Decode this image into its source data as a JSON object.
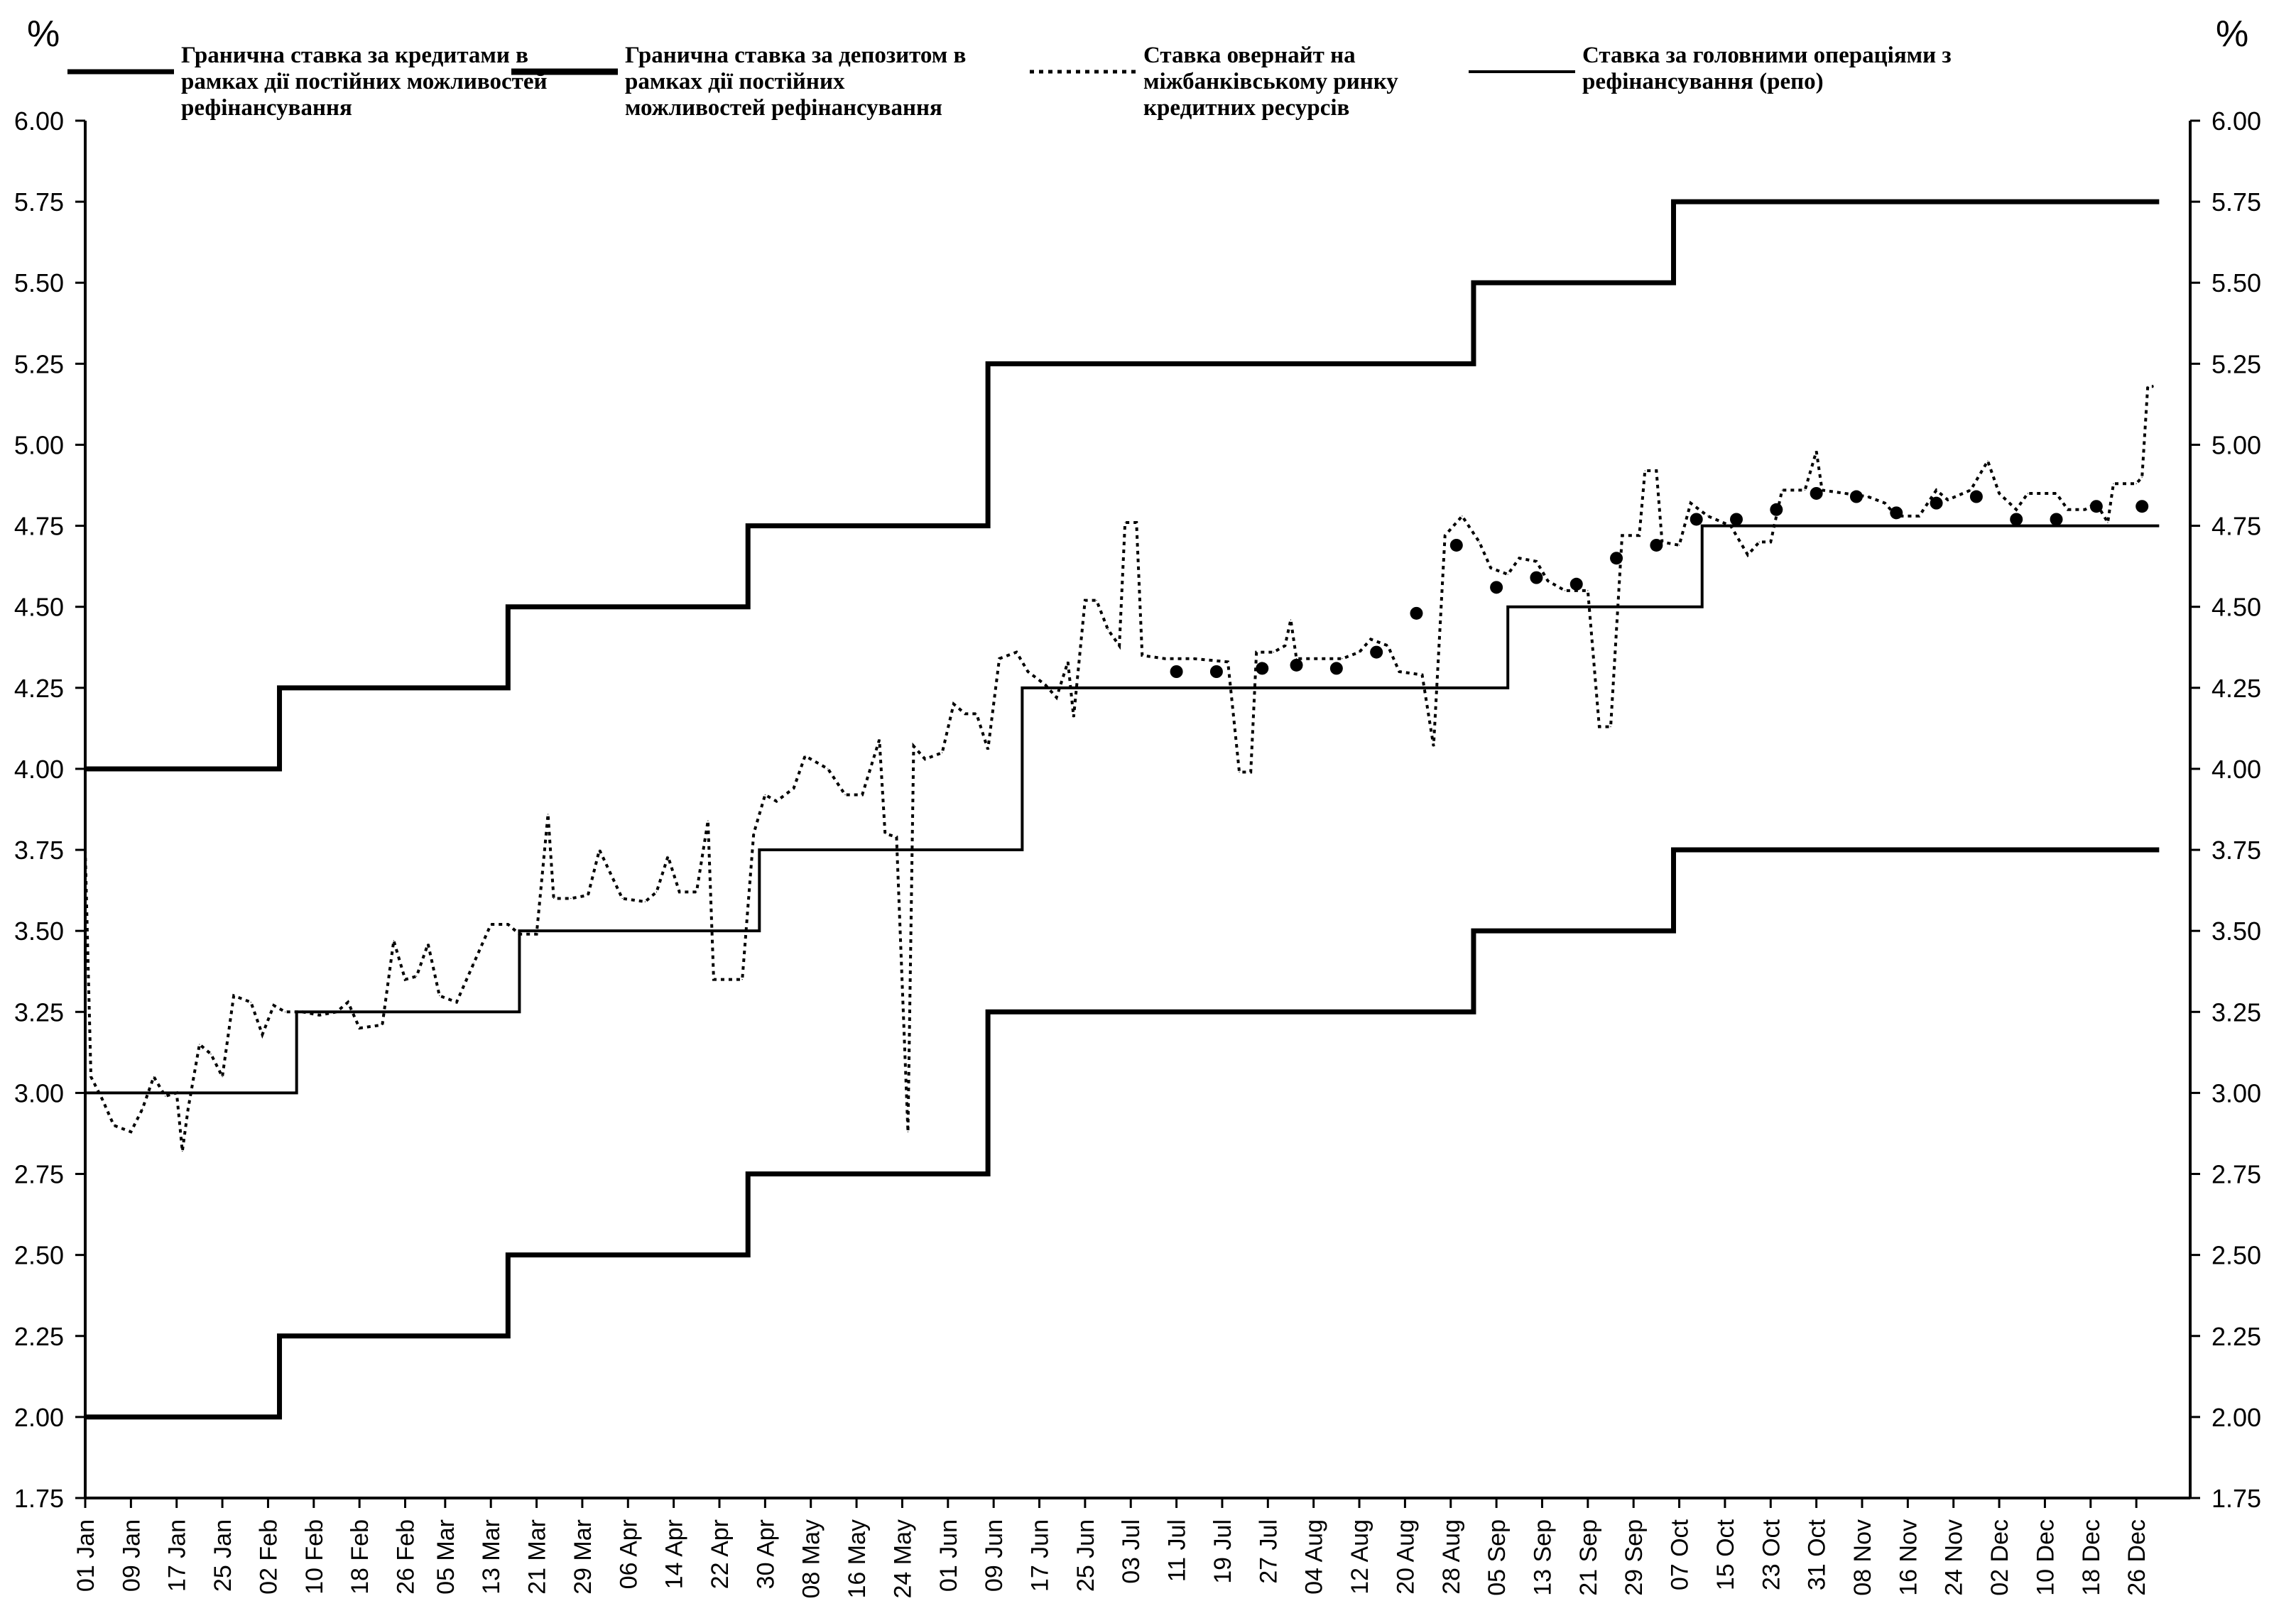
{
  "chart_data": {
    "type": "line",
    "unit_left": "%",
    "unit_right": "%",
    "ylim": [
      1.75,
      6.0
    ],
    "yticks": [
      "1.75",
      "2.00",
      "2.25",
      "2.50",
      "2.75",
      "3.00",
      "3.25",
      "3.50",
      "3.75",
      "4.00",
      "4.25",
      "4.50",
      "4.75",
      "5.00",
      "5.25",
      "5.50",
      "5.75",
      "6.00"
    ],
    "x_ticks": [
      "01 Jan",
      "09 Jan",
      "17 Jan",
      "25 Jan",
      "02 Feb",
      "10 Feb",
      "18 Feb",
      "26 Feb",
      "05 Mar",
      "13 Mar",
      "21 Mar",
      "29 Mar",
      "06 Apr",
      "14 Apr",
      "22 Apr",
      "30 Apr",
      "08 May",
      "16 May",
      "24 May",
      "01 Jun",
      "09 Jun",
      "17 Jun",
      "25 Jun",
      "03 Jul",
      "11 Jul",
      "19 Jul",
      "27 Jul",
      "04 Aug",
      "12 Aug",
      "20 Aug",
      "28 Aug",
      "05 Sep",
      "13 Sep",
      "21 Sep",
      "29 Sep",
      "07 Oct",
      "15 Oct",
      "23 Oct",
      "31 Oct",
      "08 Nov",
      "16 Nov",
      "24 Nov",
      "02 Dec",
      "10 Dec",
      "18 Dec",
      "26 Dec"
    ],
    "x_end_day": 363,
    "legend": [
      {
        "label": "Гранична ставка за кредитами в рамках дії постійних можливостей рефінансування",
        "style": "solid-thick"
      },
      {
        "label": "Гранична ставка за депозитом в рамках дії постійних можливостей рефінансування",
        "style": "solid-thick"
      },
      {
        "label": "Ставка овернайт на міжбанківському ринку кредитних ресурсів",
        "style": "dotted"
      },
      {
        "label": "Ставка за головними операціями з рефінансування (репо)",
        "style": "solid"
      }
    ],
    "series": [
      {
        "name": "Гранична ставка за кредитами в рамках дії постійних можливостей рефінансування",
        "style": "step-thick",
        "steps": [
          {
            "from": "01 Jan",
            "value": 4.0
          },
          {
            "from": "04 Feb",
            "value": 4.25
          },
          {
            "from": "16 Mar",
            "value": 4.5
          },
          {
            "from": "27 Apr",
            "value": 4.75
          },
          {
            "from": "08 Jun",
            "value": 5.25
          },
          {
            "from": "01 Sep",
            "value": 5.5
          },
          {
            "from": "06 Oct",
            "value": 5.75
          }
        ]
      },
      {
        "name": "Гранична ставка за депозитом в рамках дії постійних можливостей рефінансування",
        "style": "step-thick",
        "steps": [
          {
            "from": "01 Jan",
            "value": 2.0
          },
          {
            "from": "04 Feb",
            "value": 2.25
          },
          {
            "from": "16 Mar",
            "value": 2.5
          },
          {
            "from": "27 Apr",
            "value": 2.75
          },
          {
            "from": "08 Jun",
            "value": 3.25
          },
          {
            "from": "01 Sep",
            "value": 3.5
          },
          {
            "from": "06 Oct",
            "value": 3.75
          }
        ]
      },
      {
        "name": "Ставка за головними операціями з рефінансування (репо)",
        "style": "step",
        "steps": [
          {
            "from": "01 Jan",
            "value": 3.0
          },
          {
            "from": "07 Feb",
            "value": 3.25
          },
          {
            "from": "18 Mar",
            "value": 3.5
          },
          {
            "from": "29 Apr",
            "value": 3.75
          },
          {
            "from": "14 Jun",
            "value": 4.25
          },
          {
            "from": "07 Sep",
            "value": 4.5
          },
          {
            "from": "11 Oct",
            "value": 4.75
          }
        ]
      },
      {
        "name": "Ставка овернайт на міжбанківському ринку кредитних ресурсів",
        "style": "dotted",
        "points": [
          {
            "x": "01 Jan",
            "y": 3.75
          },
          {
            "x": "02 Jan",
            "y": 3.05
          },
          {
            "x": "04 Jan",
            "y": 2.98
          },
          {
            "x": "06 Jan",
            "y": 2.9
          },
          {
            "x": "09 Jan",
            "y": 2.88
          },
          {
            "x": "11 Jan",
            "y": 2.95
          },
          {
            "x": "13 Jan",
            "y": 3.05
          },
          {
            "x": "15 Jan",
            "y": 2.99
          },
          {
            "x": "17 Jan",
            "y": 3.0
          },
          {
            "x": "18 Jan",
            "y": 2.82
          },
          {
            "x": "19 Jan",
            "y": 2.95
          },
          {
            "x": "21 Jan",
            "y": 3.15
          },
          {
            "x": "23 Jan",
            "y": 3.12
          },
          {
            "x": "25 Jan",
            "y": 3.05
          },
          {
            "x": "27 Jan",
            "y": 3.3
          },
          {
            "x": "30 Jan",
            "y": 3.28
          },
          {
            "x": "01 Feb",
            "y": 3.18
          },
          {
            "x": "03 Feb",
            "y": 3.27
          },
          {
            "x": "05 Feb",
            "y": 3.25
          },
          {
            "x": "08 Feb",
            "y": 3.25
          },
          {
            "x": "11 Feb",
            "y": 3.24
          },
          {
            "x": "14 Feb",
            "y": 3.25
          },
          {
            "x": "16 Feb",
            "y": 3.28
          },
          {
            "x": "18 Feb",
            "y": 3.2
          },
          {
            "x": "22 Feb",
            "y": 3.21
          },
          {
            "x": "24 Feb",
            "y": 3.47
          },
          {
            "x": "26 Feb",
            "y": 3.35
          },
          {
            "x": "28 Feb",
            "y": 3.36
          },
          {
            "x": "02 Mar",
            "y": 3.46
          },
          {
            "x": "04 Mar",
            "y": 3.3
          },
          {
            "x": "07 Mar",
            "y": 3.28
          },
          {
            "x": "10 Mar",
            "y": 3.4
          },
          {
            "x": "13 Mar",
            "y": 3.52
          },
          {
            "x": "16 Mar",
            "y": 3.52
          },
          {
            "x": "18 Mar",
            "y": 3.49
          },
          {
            "x": "21 Mar",
            "y": 3.49
          },
          {
            "x": "23 Mar",
            "y": 3.86
          },
          {
            "x": "24 Mar",
            "y": 3.6
          },
          {
            "x": "27 Mar",
            "y": 3.6
          },
          {
            "x": "30 Mar",
            "y": 3.61
          },
          {
            "x": "01 Apr",
            "y": 3.75
          },
          {
            "x": "05 Apr",
            "y": 3.6
          },
          {
            "x": "09 Apr",
            "y": 3.59
          },
          {
            "x": "11 Apr",
            "y": 3.62
          },
          {
            "x": "13 Apr",
            "y": 3.73
          },
          {
            "x": "15 Apr",
            "y": 3.62
          },
          {
            "x": "18 Apr",
            "y": 3.62
          },
          {
            "x": "20 Apr",
            "y": 3.84
          },
          {
            "x": "21 Apr",
            "y": 3.35
          },
          {
            "x": "26 Apr",
            "y": 3.35
          },
          {
            "x": "28 Apr",
            "y": 3.8
          },
          {
            "x": "30 Apr",
            "y": 3.92
          },
          {
            "x": "02 May",
            "y": 3.9
          },
          {
            "x": "05 May",
            "y": 3.94
          },
          {
            "x": "07 May",
            "y": 4.04
          },
          {
            "x": "11 May",
            "y": 4.0
          },
          {
            "x": "14 May",
            "y": 3.92
          },
          {
            "x": "17 May",
            "y": 3.92
          },
          {
            "x": "20 May",
            "y": 4.09
          },
          {
            "x": "21 May",
            "y": 3.8
          },
          {
            "x": "23 May",
            "y": 3.79
          },
          {
            "x": "25 May",
            "y": 2.88
          },
          {
            "x": "26 May",
            "y": 4.07
          },
          {
            "x": "28 May",
            "y": 4.03
          },
          {
            "x": "31 May",
            "y": 4.05
          },
          {
            "x": "02 Jun",
            "y": 4.2
          },
          {
            "x": "04 Jun",
            "y": 4.17
          },
          {
            "x": "06 Jun",
            "y": 4.17
          },
          {
            "x": "08 Jun",
            "y": 4.06
          },
          {
            "x": "10 Jun",
            "y": 4.34
          },
          {
            "x": "13 Jun",
            "y": 4.36
          },
          {
            "x": "15 Jun",
            "y": 4.3
          },
          {
            "x": "18 Jun",
            "y": 4.26
          },
          {
            "x": "20 Jun",
            "y": 4.22
          },
          {
            "x": "22 Jun",
            "y": 4.33
          },
          {
            "x": "23 Jun",
            "y": 4.16
          },
          {
            "x": "25 Jun",
            "y": 4.52
          },
          {
            "x": "27 Jun",
            "y": 4.52
          },
          {
            "x": "29 Jun",
            "y": 4.43
          },
          {
            "x": "01 Jul",
            "y": 4.38
          },
          {
            "x": "02 Jul",
            "y": 4.76
          },
          {
            "x": "04 Jul",
            "y": 4.76
          },
          {
            "x": "05 Jul",
            "y": 4.35
          },
          {
            "x": "09 Jul",
            "y": 4.34
          },
          {
            "x": "14 Jul",
            "y": 4.34
          },
          {
            "x": "20 Jul",
            "y": 4.33
          },
          {
            "x": "22 Jul",
            "y": 3.99
          },
          {
            "x": "24 Jul",
            "y": 3.99
          },
          {
            "x": "25 Jul",
            "y": 4.36
          },
          {
            "x": "28 Jul",
            "y": 4.36
          },
          {
            "x": "30 Jul",
            "y": 4.38
          },
          {
            "x": "31 Jul",
            "y": 4.46
          },
          {
            "x": "01 Aug",
            "y": 4.34
          },
          {
            "x": "09 Aug",
            "y": 4.34
          },
          {
            "x": "12 Aug",
            "y": 4.36
          },
          {
            "x": "14 Aug",
            "y": 4.4
          },
          {
            "x": "17 Aug",
            "y": 4.38
          },
          {
            "x": "19 Aug",
            "y": 4.3
          },
          {
            "x": "23 Aug",
            "y": 4.29
          },
          {
            "x": "25 Aug",
            "y": 4.07
          },
          {
            "x": "27 Aug",
            "y": 4.72
          },
          {
            "x": "30 Aug",
            "y": 4.78
          },
          {
            "x": "02 Sep",
            "y": 4.7
          },
          {
            "x": "04 Sep",
            "y": 4.62
          },
          {
            "x": "07 Sep",
            "y": 4.6
          },
          {
            "x": "09 Sep",
            "y": 4.65
          },
          {
            "x": "12 Sep",
            "y": 4.64
          },
          {
            "x": "14 Sep",
            "y": 4.58
          },
          {
            "x": "17 Sep",
            "y": 4.55
          },
          {
            "x": "21 Sep",
            "y": 4.55
          },
          {
            "x": "23 Sep",
            "y": 4.13
          },
          {
            "x": "25 Sep",
            "y": 4.13
          },
          {
            "x": "27 Sep",
            "y": 4.72
          },
          {
            "x": "30 Sep",
            "y": 4.72
          },
          {
            "x": "01 Oct",
            "y": 4.92
          },
          {
            "x": "03 Oct",
            "y": 4.92
          },
          {
            "x": "04 Oct",
            "y": 4.7
          },
          {
            "x": "07 Oct",
            "y": 4.69
          },
          {
            "x": "09 Oct",
            "y": 4.82
          },
          {
            "x": "12 Oct",
            "y": 4.78
          },
          {
            "x": "16 Oct",
            "y": 4.75
          },
          {
            "x": "19 Oct",
            "y": 4.66
          },
          {
            "x": "21 Oct",
            "y": 4.7
          },
          {
            "x": "23 Oct",
            "y": 4.7
          },
          {
            "x": "25 Oct",
            "y": 4.86
          },
          {
            "x": "29 Oct",
            "y": 4.86
          },
          {
            "x": "31 Oct",
            "y": 4.98
          },
          {
            "x": "01 Nov",
            "y": 4.86
          },
          {
            "x": "05 Nov",
            "y": 4.85
          },
          {
            "x": "09 Nov",
            "y": 4.84
          },
          {
            "x": "12 Nov",
            "y": 4.82
          },
          {
            "x": "14 Nov",
            "y": 4.78
          },
          {
            "x": "18 Nov",
            "y": 4.78
          },
          {
            "x": "21 Nov",
            "y": 4.86
          },
          {
            "x": "23 Nov",
            "y": 4.83
          },
          {
            "x": "27 Nov",
            "y": 4.86
          },
          {
            "x": "30 Nov",
            "y": 4.95
          },
          {
            "x": "02 Dec",
            "y": 4.85
          },
          {
            "x": "05 Dec",
            "y": 4.8
          },
          {
            "x": "07 Dec",
            "y": 4.85
          },
          {
            "x": "12 Dec",
            "y": 4.85
          },
          {
            "x": "14 Dec",
            "y": 4.8
          },
          {
            "x": "17 Dec",
            "y": 4.8
          },
          {
            "x": "19 Dec",
            "y": 4.82
          },
          {
            "x": "21 Dec",
            "y": 4.76
          },
          {
            "x": "22 Dec",
            "y": 4.88
          },
          {
            "x": "26 Dec",
            "y": 4.88
          },
          {
            "x": "27 Dec",
            "y": 4.9
          },
          {
            "x": "28 Dec",
            "y": 5.18
          },
          {
            "x": "29 Dec",
            "y": 5.18
          }
        ]
      },
      {
        "name": "Ставка за головними операціями з рефінансування (репо) — точки",
        "style": "markers",
        "points": [
          {
            "x": "11 Jul",
            "y": 4.3
          },
          {
            "x": "18 Jul",
            "y": 4.3
          },
          {
            "x": "26 Jul",
            "y": 4.31
          },
          {
            "x": "01 Aug",
            "y": 4.32
          },
          {
            "x": "08 Aug",
            "y": 4.31
          },
          {
            "x": "15 Aug",
            "y": 4.36
          },
          {
            "x": "22 Aug",
            "y": 4.48
          },
          {
            "x": "29 Aug",
            "y": 4.69
          },
          {
            "x": "05 Sep",
            "y": 4.56
          },
          {
            "x": "12 Sep",
            "y": 4.59
          },
          {
            "x": "19 Sep",
            "y": 4.57
          },
          {
            "x": "26 Sep",
            "y": 4.65
          },
          {
            "x": "03 Oct",
            "y": 4.69
          },
          {
            "x": "10 Oct",
            "y": 4.77
          },
          {
            "x": "17 Oct",
            "y": 4.77
          },
          {
            "x": "24 Oct",
            "y": 4.8
          },
          {
            "x": "31 Oct",
            "y": 4.85
          },
          {
            "x": "07 Nov",
            "y": 4.84
          },
          {
            "x": "14 Nov",
            "y": 4.79
          },
          {
            "x": "21 Nov",
            "y": 4.82
          },
          {
            "x": "28 Nov",
            "y": 4.84
          },
          {
            "x": "05 Dec",
            "y": 4.77
          },
          {
            "x": "12 Dec",
            "y": 4.77
          },
          {
            "x": "19 Dec",
            "y": 4.81
          },
          {
            "x": "27 Dec",
            "y": 4.81
          }
        ]
      }
    ]
  }
}
